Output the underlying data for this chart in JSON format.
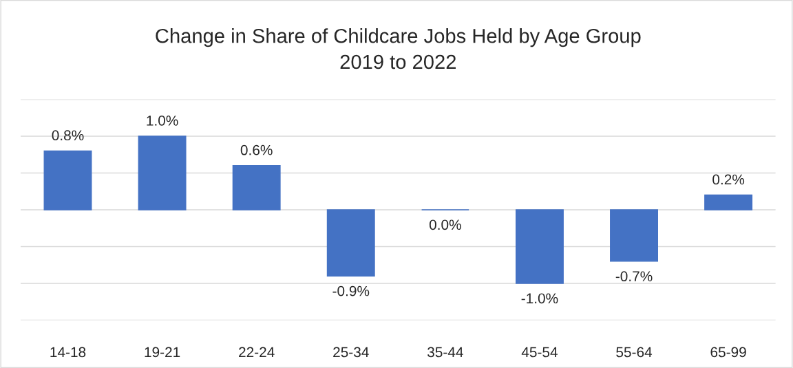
{
  "chart_data": {
    "type": "bar",
    "title": "Change in Share of Childcare Jobs Held by Age Group\n2019 to 2022",
    "categories": [
      "14-18",
      "19-21",
      "22-24",
      "25-34",
      "35-44",
      "45-54",
      "55-64",
      "65-99"
    ],
    "values": [
      0.8,
      1.0,
      0.6,
      -0.9,
      0.0,
      -1.0,
      -0.7,
      0.2
    ],
    "value_labels": [
      "0.8%",
      "1.0%",
      "0.6%",
      "-0.9%",
      "0.0%",
      "-1.0%",
      "-0.7%",
      "0.2%"
    ],
    "color": "#4472c4",
    "ylim": [
      -1.5,
      1.5
    ],
    "yticks": [
      {
        "value": -1.5,
        "label": null
      },
      {
        "value": -1.0,
        "label": null
      },
      {
        "value": -0.5,
        "label": null
      },
      {
        "value": 0,
        "label": null
      },
      {
        "value": 0.5,
        "label": null
      },
      {
        "value": 1.0,
        "label": null
      },
      {
        "value": 1.5,
        "label": null
      }
    ],
    "tick_labels": "x",
    "grid": "y",
    "legend": false
  }
}
